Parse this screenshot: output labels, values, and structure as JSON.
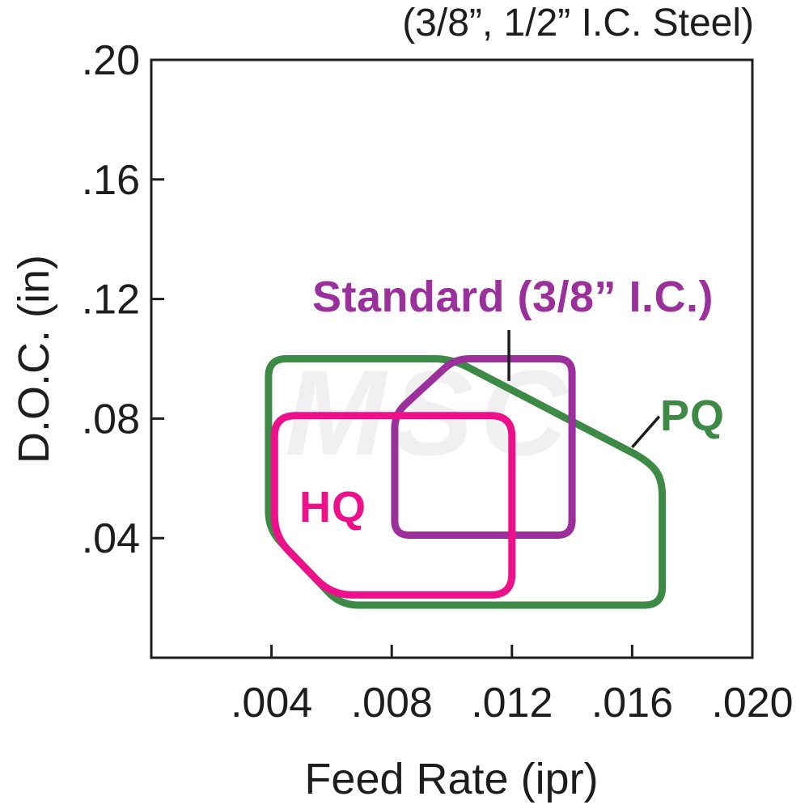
{
  "watermark": "MSC",
  "colors": {
    "axis": "#1d1d1d",
    "pq_green": "#3d8a46",
    "standard_purple": "#9b2f9b",
    "hq_pink": "#ee0f8b"
  },
  "chart_data": {
    "type": "area",
    "title": "(3/8”, 1/2” I.C. Steel)",
    "xlabel": "Feed Rate (ipr)",
    "ylabel": "D.O.C. (in)",
    "xlim": [
      0,
      0.02
    ],
    "ylim": [
      0,
      0.2
    ],
    "grid": false,
    "legend_position": "none",
    "x_ticks": [
      0.004,
      0.008,
      0.012,
      0.016,
      0.02
    ],
    "x_tick_labels": [
      ".004",
      ".008",
      ".012",
      ".016",
      ".020"
    ],
    "y_ticks": [
      0.04,
      0.08,
      0.12,
      0.16,
      0.2
    ],
    "y_tick_labels": [
      ".04",
      ".08",
      ".12",
      ".16",
      ".20"
    ],
    "regions": [
      {
        "name": "pq",
        "label": "PQ",
        "color": "#3d8a46",
        "corner_radius_px": 22,
        "points": [
          [
            0.0039,
            0.043
          ],
          [
            0.0039,
            0.1
          ],
          [
            0.01,
            0.1
          ],
          [
            0.0165,
            0.066
          ],
          [
            0.017,
            0.06
          ],
          [
            0.017,
            0.0176
          ],
          [
            0.0063,
            0.0176
          ]
        ]
      },
      {
        "name": "standard",
        "label": "Standard (3/8” I.C.)",
        "color": "#9b2f9b",
        "corner_radius_px": 18,
        "points": [
          [
            0.0081,
            0.0815
          ],
          [
            0.0081,
            0.041
          ],
          [
            0.014,
            0.041
          ],
          [
            0.014,
            0.1
          ],
          [
            0.0101,
            0.1
          ]
        ]
      },
      {
        "name": "hq",
        "label": "HQ",
        "color": "#ee0f8b",
        "corner_radius_px": 26,
        "points": [
          [
            0.0041,
            0.081
          ],
          [
            0.012,
            0.081
          ],
          [
            0.012,
            0.021
          ],
          [
            0.006,
            0.021
          ],
          [
            0.0041,
            0.0406
          ]
        ]
      }
    ],
    "leader_lines": [
      {
        "name": "standard-leader",
        "from": [
          0.0119,
          0.1096
        ],
        "to": [
          0.0119,
          0.0926
        ]
      },
      {
        "name": "pq-leader",
        "from": [
          0.0169,
          0.0807
        ],
        "to": [
          0.016,
          0.0704
        ]
      }
    ]
  }
}
